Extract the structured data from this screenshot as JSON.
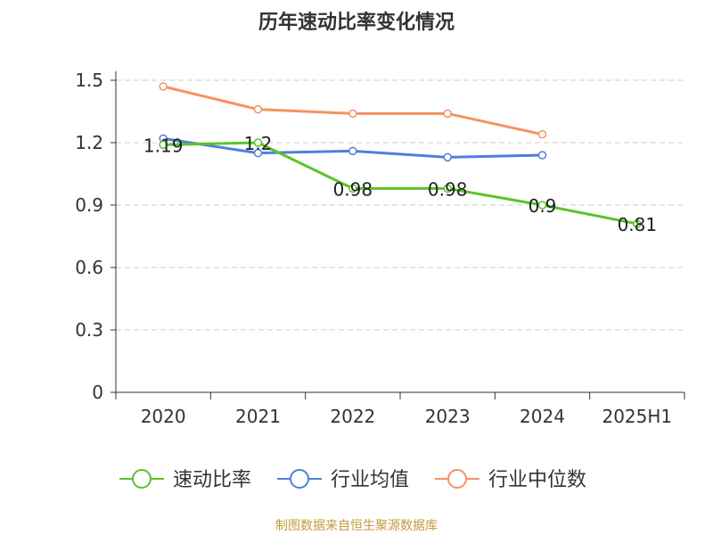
{
  "chart_data": {
    "type": "line",
    "title": "历年速动比率变化情况",
    "categories": [
      "2020",
      "2021",
      "2022",
      "2023",
      "2024",
      "2025H1"
    ],
    "y_ticks": [
      "0",
      "0.3",
      "0.6",
      "0.9",
      "1.2",
      "1.5"
    ],
    "ylim": [
      0,
      1.5
    ],
    "grid": "horizontal dashed",
    "legend_position": "bottom",
    "series": [
      {
        "name": "速动比率",
        "color": "#5cc32a",
        "values": [
          1.19,
          1.2,
          0.98,
          0.98,
          0.9,
          0.81
        ],
        "labels": [
          "1.19",
          "1.2",
          "0.98",
          "0.98",
          "0.9",
          "0.81"
        ]
      },
      {
        "name": "行业均值",
        "color": "#4f7fdc",
        "values": [
          1.22,
          1.15,
          1.16,
          1.13,
          1.14,
          null
        ]
      },
      {
        "name": "行业中位数",
        "color": "#f59262",
        "values": [
          1.47,
          1.36,
          1.34,
          1.34,
          1.24,
          null
        ]
      }
    ],
    "source": "制图数据来自恒生聚源数据库"
  }
}
